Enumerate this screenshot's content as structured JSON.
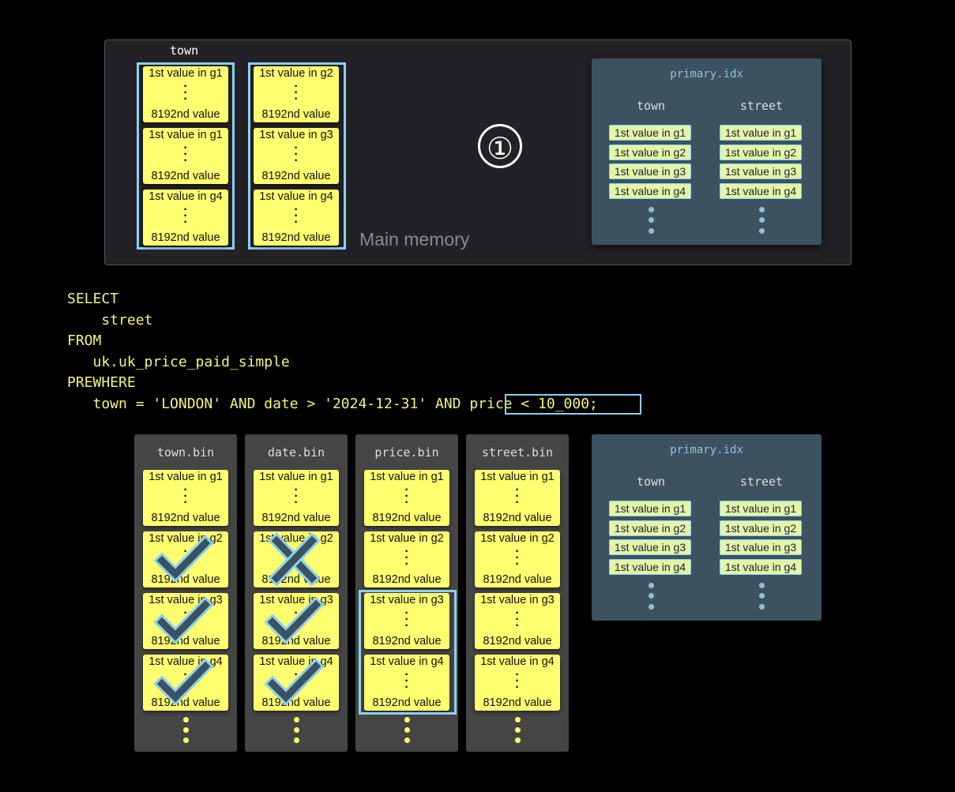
{
  "memory": {
    "label": "Main memory",
    "column_label": "town",
    "groups": [
      [
        "1st value in g1",
        "1st value in g1",
        "1st value in g4"
      ],
      [
        "1st value in g2",
        "1st value in g3",
        "1st value in g4"
      ]
    ],
    "last_value": "8192nd value",
    "step_marker": "①"
  },
  "primary_idx": {
    "title": "primary.idx",
    "columns": [
      {
        "name": "town",
        "cells": [
          "1st value in g1",
          "1st value in g2",
          "1st value in g3",
          "1st value in g4"
        ]
      },
      {
        "name": "street",
        "cells": [
          "1st value in g1",
          "1st value in g2",
          "1st value in g3",
          "1st value in g4"
        ]
      }
    ]
  },
  "sql": {
    "lines": [
      "SELECT",
      "    street",
      "FROM",
      "   uk.uk_price_paid_simple",
      "PREWHERE",
      "   town = 'LONDON' AND date > '2024-12-31' AND price < 10_000;"
    ],
    "highlight": "price < 10_000"
  },
  "bins": [
    {
      "name": "town.bin",
      "marks": [
        "",
        "check",
        "check",
        "check"
      ]
    },
    {
      "name": "date.bin",
      "marks": [
        "",
        "cross",
        "check",
        "check"
      ]
    },
    {
      "name": "price.bin",
      "marks": [
        "",
        "",
        "",
        ""
      ],
      "selected_granules": [
        "g3",
        "g4"
      ]
    },
    {
      "name": "street.bin",
      "marks": [
        "",
        "",
        "",
        ""
      ]
    }
  ],
  "bin_cells": [
    "1st value in g1",
    "1st value in g2",
    "1st value in g3",
    "1st value in g4"
  ],
  "colors": {
    "card": "#ffff70",
    "highlight": "#8ccff0",
    "index_bg": "#3d5260",
    "sql": "#f4f47a"
  }
}
